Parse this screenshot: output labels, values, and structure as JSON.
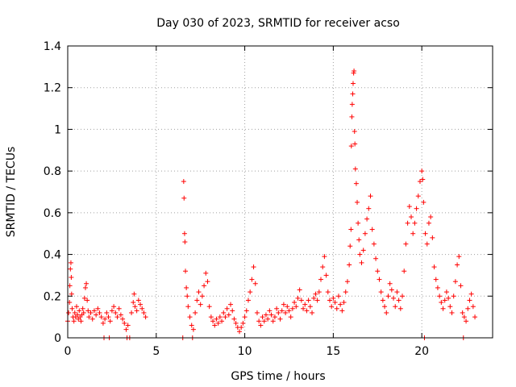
{
  "chart_data": {
    "type": "scatter",
    "title": "Day 030 of 2023, SRMTID for receiver acso",
    "xlabel": "GPS time / hours",
    "ylabel": "SRMTID / TECUs",
    "xlim": [
      0,
      24
    ],
    "ylim": [
      0,
      1.4
    ],
    "x_ticks": [
      0,
      5,
      10,
      15,
      20
    ],
    "x_tick_labels": [
      "0",
      "5",
      "10",
      "15",
      "20"
    ],
    "y_ticks": [
      0,
      0.2,
      0.4,
      0.6,
      0.8,
      1.0,
      1.2,
      1.4
    ],
    "y_tick_labels": [
      "0",
      "0.2",
      "0.4",
      "0.6",
      "0.8",
      "1",
      "1.2",
      "1.4"
    ],
    "grid": true,
    "marker": "plus",
    "series": [
      {
        "name": "SRMTID",
        "color": "#ff0000",
        "points": [
          [
            0.0,
            0.08
          ],
          [
            0.05,
            0.12
          ],
          [
            0.1,
            0.17
          ],
          [
            0.12,
            0.25
          ],
          [
            0.15,
            0.33
          ],
          [
            0.18,
            0.36
          ],
          [
            0.2,
            0.29
          ],
          [
            0.22,
            0.21
          ],
          [
            0.25,
            0.14
          ],
          [
            0.3,
            0.1
          ],
          [
            0.35,
            0.08
          ],
          [
            0.4,
            0.12
          ],
          [
            0.45,
            0.1
          ],
          [
            0.5,
            0.15
          ],
          [
            0.55,
            0.11
          ],
          [
            0.6,
            0.09
          ],
          [
            0.65,
            0.13
          ],
          [
            0.7,
            0.1
          ],
          [
            0.75,
            0.08
          ],
          [
            0.8,
            0.11
          ],
          [
            0.85,
            0.14
          ],
          [
            0.9,
            0.12
          ],
          [
            0.95,
            0.19
          ],
          [
            1.0,
            0.24
          ],
          [
            1.05,
            0.26
          ],
          [
            1.1,
            0.18
          ],
          [
            1.15,
            0.13
          ],
          [
            1.2,
            0.1
          ],
          [
            1.3,
            0.12
          ],
          [
            1.4,
            0.09
          ],
          [
            1.5,
            0.13
          ],
          [
            1.6,
            0.11
          ],
          [
            1.7,
            0.14
          ],
          [
            1.8,
            0.12
          ],
          [
            1.9,
            0.1
          ],
          [
            2.0,
            0.07
          ],
          [
            2.05,
            0.0
          ],
          [
            2.1,
            0.09
          ],
          [
            2.2,
            0.12
          ],
          [
            2.3,
            0.1
          ],
          [
            2.35,
            0.0
          ],
          [
            2.4,
            0.08
          ],
          [
            2.5,
            0.13
          ],
          [
            2.6,
            0.15
          ],
          [
            2.7,
            0.12
          ],
          [
            2.8,
            0.1
          ],
          [
            2.9,
            0.14
          ],
          [
            3.0,
            0.11
          ],
          [
            3.1,
            0.09
          ],
          [
            3.2,
            0.07
          ],
          [
            3.3,
            0.04
          ],
          [
            3.35,
            0.0
          ],
          [
            3.4,
            0.06
          ],
          [
            3.5,
            0.0
          ],
          [
            3.6,
            0.12
          ],
          [
            3.7,
            0.17
          ],
          [
            3.75,
            0.21
          ],
          [
            3.8,
            0.15
          ],
          [
            3.9,
            0.13
          ],
          [
            4.0,
            0.18
          ],
          [
            4.1,
            0.16
          ],
          [
            4.2,
            0.14
          ],
          [
            4.3,
            0.12
          ],
          [
            4.4,
            0.1
          ],
          [
            6.5,
            0.0
          ],
          [
            6.55,
            0.75
          ],
          [
            6.57,
            0.67
          ],
          [
            6.6,
            0.5
          ],
          [
            6.62,
            0.46
          ],
          [
            6.65,
            0.32
          ],
          [
            6.7,
            0.24
          ],
          [
            6.75,
            0.2
          ],
          [
            6.8,
            0.15
          ],
          [
            6.9,
            0.1
          ],
          [
            7.0,
            0.06
          ],
          [
            7.05,
            0.0
          ],
          [
            7.1,
            0.04
          ],
          [
            7.2,
            0.12
          ],
          [
            7.3,
            0.18
          ],
          [
            7.4,
            0.22
          ],
          [
            7.5,
            0.16
          ],
          [
            7.6,
            0.2
          ],
          [
            7.7,
            0.25
          ],
          [
            7.8,
            0.31
          ],
          [
            7.9,
            0.27
          ],
          [
            8.0,
            0.15
          ],
          [
            8.1,
            0.1
          ],
          [
            8.2,
            0.08
          ],
          [
            8.3,
            0.06
          ],
          [
            8.4,
            0.09
          ],
          [
            8.5,
            0.07
          ],
          [
            8.6,
            0.1
          ],
          [
            8.7,
            0.08
          ],
          [
            8.8,
            0.12
          ],
          [
            8.9,
            0.1
          ],
          [
            9.0,
            0.14
          ],
          [
            9.1,
            0.11
          ],
          [
            9.2,
            0.16
          ],
          [
            9.3,
            0.13
          ],
          [
            9.4,
            0.09
          ],
          [
            9.5,
            0.07
          ],
          [
            9.6,
            0.05
          ],
          [
            9.7,
            0.03
          ],
          [
            9.8,
            0.05
          ],
          [
            9.9,
            0.07
          ],
          [
            10.0,
            0.1
          ],
          [
            10.1,
            0.13
          ],
          [
            10.2,
            0.18
          ],
          [
            10.3,
            0.22
          ],
          [
            10.4,
            0.28
          ],
          [
            10.5,
            0.34
          ],
          [
            10.6,
            0.26
          ],
          [
            10.7,
            0.12
          ],
          [
            10.8,
            0.08
          ],
          [
            10.9,
            0.06
          ],
          [
            11.0,
            0.1
          ],
          [
            11.1,
            0.08
          ],
          [
            11.2,
            0.11
          ],
          [
            11.3,
            0.09
          ],
          [
            11.4,
            0.13
          ],
          [
            11.5,
            0.11
          ],
          [
            11.6,
            0.08
          ],
          [
            11.7,
            0.1
          ],
          [
            11.8,
            0.14
          ],
          [
            11.9,
            0.12
          ],
          [
            12.0,
            0.09
          ],
          [
            12.1,
            0.13
          ],
          [
            12.2,
            0.16
          ],
          [
            12.3,
            0.12
          ],
          [
            12.4,
            0.15
          ],
          [
            12.5,
            0.13
          ],
          [
            12.6,
            0.1
          ],
          [
            12.7,
            0.14
          ],
          [
            12.8,
            0.17
          ],
          [
            12.9,
            0.15
          ],
          [
            13.0,
            0.19
          ],
          [
            13.1,
            0.23
          ],
          [
            13.2,
            0.18
          ],
          [
            13.3,
            0.14
          ],
          [
            13.4,
            0.16
          ],
          [
            13.5,
            0.13
          ],
          [
            13.6,
            0.18
          ],
          [
            13.7,
            0.15
          ],
          [
            13.8,
            0.12
          ],
          [
            13.9,
            0.19
          ],
          [
            14.0,
            0.21
          ],
          [
            14.1,
            0.18
          ],
          [
            14.2,
            0.22
          ],
          [
            14.3,
            0.28
          ],
          [
            14.4,
            0.34
          ],
          [
            14.5,
            0.39
          ],
          [
            14.6,
            0.3
          ],
          [
            14.7,
            0.22
          ],
          [
            14.8,
            0.18
          ],
          [
            14.9,
            0.15
          ],
          [
            15.0,
            0.19
          ],
          [
            15.1,
            0.17
          ],
          [
            15.2,
            0.14
          ],
          [
            15.3,
            0.2
          ],
          [
            15.4,
            0.16
          ],
          [
            15.5,
            0.13
          ],
          [
            15.6,
            0.17
          ],
          [
            15.7,
            0.22
          ],
          [
            15.8,
            0.27
          ],
          [
            15.9,
            0.35
          ],
          [
            15.95,
            0.44
          ],
          [
            16.0,
            0.52
          ],
          [
            16.02,
            0.92
          ],
          [
            16.05,
            1.06
          ],
          [
            16.07,
            1.12
          ],
          [
            16.1,
            1.17
          ],
          [
            16.12,
            1.22
          ],
          [
            16.15,
            1.27
          ],
          [
            16.17,
            1.28
          ],
          [
            16.2,
            0.99
          ],
          [
            16.22,
            0.93
          ],
          [
            16.25,
            0.81
          ],
          [
            16.3,
            0.74
          ],
          [
            16.35,
            0.65
          ],
          [
            16.4,
            0.55
          ],
          [
            16.45,
            0.47
          ],
          [
            16.5,
            0.4
          ],
          [
            16.6,
            0.36
          ],
          [
            16.7,
            0.42
          ],
          [
            16.8,
            0.5
          ],
          [
            16.9,
            0.57
          ],
          [
            17.0,
            0.62
          ],
          [
            17.1,
            0.68
          ],
          [
            17.2,
            0.52
          ],
          [
            17.3,
            0.45
          ],
          [
            17.4,
            0.38
          ],
          [
            17.5,
            0.32
          ],
          [
            17.6,
            0.28
          ],
          [
            17.7,
            0.22
          ],
          [
            17.8,
            0.18
          ],
          [
            17.9,
            0.15
          ],
          [
            18.0,
            0.12
          ],
          [
            18.1,
            0.2
          ],
          [
            18.2,
            0.26
          ],
          [
            18.3,
            0.23
          ],
          [
            18.4,
            0.19
          ],
          [
            18.5,
            0.15
          ],
          [
            18.6,
            0.22
          ],
          [
            18.7,
            0.18
          ],
          [
            18.8,
            0.14
          ],
          [
            18.9,
            0.2
          ],
          [
            19.0,
            0.32
          ],
          [
            19.1,
            0.45
          ],
          [
            19.2,
            0.55
          ],
          [
            19.3,
            0.63
          ],
          [
            19.4,
            0.58
          ],
          [
            19.5,
            0.5
          ],
          [
            19.6,
            0.55
          ],
          [
            19.7,
            0.62
          ],
          [
            19.8,
            0.68
          ],
          [
            19.9,
            0.75
          ],
          [
            20.0,
            0.8
          ],
          [
            20.05,
            0.76
          ],
          [
            20.1,
            0.65
          ],
          [
            20.15,
            0.0
          ],
          [
            20.2,
            0.5
          ],
          [
            20.3,
            0.45
          ],
          [
            20.4,
            0.55
          ],
          [
            20.5,
            0.58
          ],
          [
            20.6,
            0.48
          ],
          [
            20.7,
            0.34
          ],
          [
            20.8,
            0.28
          ],
          [
            20.9,
            0.24
          ],
          [
            21.0,
            0.2
          ],
          [
            21.1,
            0.17
          ],
          [
            21.2,
            0.14
          ],
          [
            21.3,
            0.18
          ],
          [
            21.4,
            0.22
          ],
          [
            21.5,
            0.19
          ],
          [
            21.6,
            0.15
          ],
          [
            21.7,
            0.12
          ],
          [
            21.8,
            0.2
          ],
          [
            21.9,
            0.27
          ],
          [
            22.0,
            0.35
          ],
          [
            22.1,
            0.39
          ],
          [
            22.2,
            0.25
          ],
          [
            22.3,
            0.12
          ],
          [
            22.35,
            0.0
          ],
          [
            22.4,
            0.1
          ],
          [
            22.5,
            0.08
          ],
          [
            22.6,
            0.14
          ],
          [
            22.7,
            0.18
          ],
          [
            22.8,
            0.21
          ],
          [
            22.9,
            0.15
          ],
          [
            23.0,
            0.1
          ]
        ]
      }
    ]
  }
}
